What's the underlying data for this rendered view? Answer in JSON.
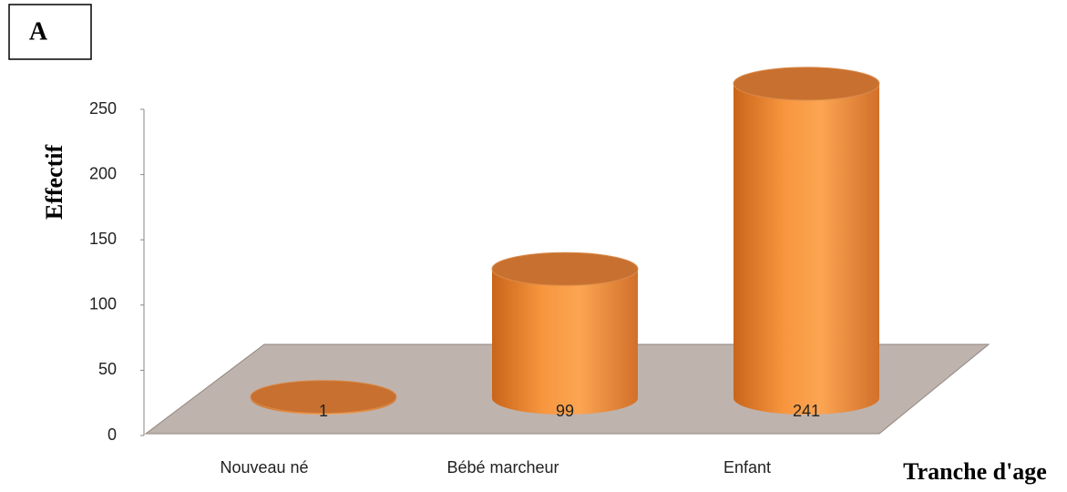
{
  "chart_data": {
    "type": "bar",
    "panel_label": "A",
    "x_label": "Tranche d'age",
    "y_label": "Effectif",
    "categories": [
      "Nouveau né",
      "Bébé marcheur",
      "Enfant"
    ],
    "values": [
      1,
      99,
      241
    ],
    "color": "#f79646",
    "ylim": [
      0,
      250
    ],
    "yticks": [
      0,
      50,
      100,
      150,
      200,
      250
    ]
  }
}
